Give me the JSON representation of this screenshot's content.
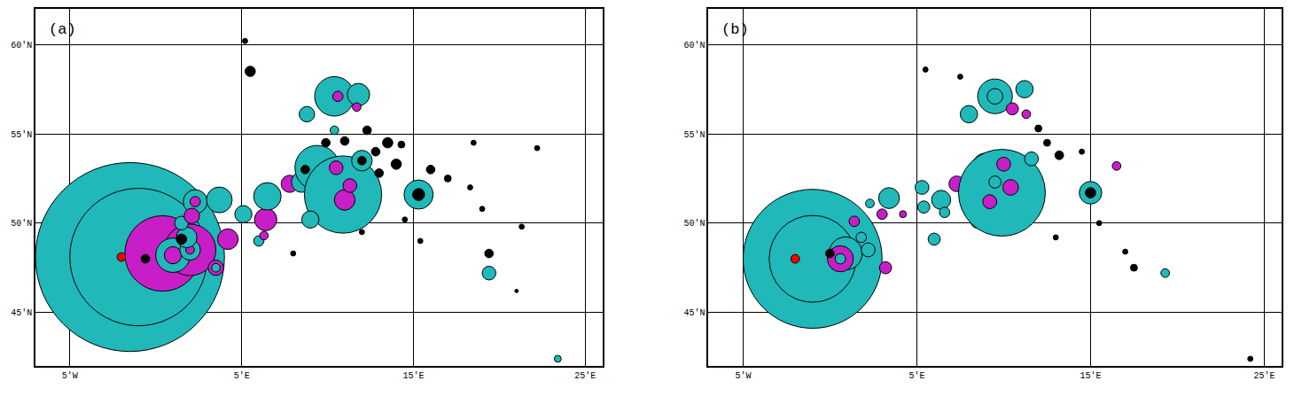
{
  "chart_data": [
    {
      "type": "scatter",
      "title": "(a)",
      "grid": true,
      "marker": "circle",
      "xlim": [
        -7,
        26
      ],
      "ylim": [
        42,
        62
      ],
      "xticks": [
        {
          "value": -5,
          "label": "5'W"
        },
        {
          "value": 5,
          "label": "5'E"
        },
        {
          "value": 15,
          "label": "15'E"
        },
        {
          "value": 25,
          "label": "25'E"
        }
      ],
      "yticks": [
        {
          "value": 45,
          "label": "45'N"
        },
        {
          "value": 50,
          "label": "50'N"
        },
        {
          "value": 55,
          "label": "55'N"
        },
        {
          "value": 60,
          "label": "60'N"
        }
      ],
      "series": [
        {
          "x": [
            -1.5,
            -1.0,
            0.4,
            2.0,
            1.0,
            1.0,
            2.0,
            2.0,
            1.8,
            1.5,
            -0.6,
            3.5,
            3.5,
            4.2,
            1.5,
            2.3,
            2.3,
            3.7,
            2.1,
            5.1,
            6.4,
            6.5,
            7.8,
            8.5,
            9.4,
            10.9,
            9.0,
            11.0,
            11.3,
            10.5,
            12.0,
            12.0,
            15.3,
            15.3,
            10.4,
            10.6,
            11.8,
            8.8,
            11.7,
            10.4,
            6.0,
            6.3,
            19.4,
            23.4,
            5.5,
            5.2,
            12.3,
            13.5,
            14.3,
            12.8,
            14.0,
            16.0,
            18.5,
            22.2,
            17.0,
            18.3,
            19.0,
            19.4,
            21.3,
            21.0,
            15.4,
            12.0,
            14.5,
            8.0,
            8.7,
            9.9,
            11.0,
            13.0,
            -2.0
          ],
          "y": [
            48.1,
            48.1,
            48.3,
            48.5,
            48.2,
            48.2,
            48.5,
            48.5,
            49.2,
            49.1,
            48.0,
            47.5,
            47.5,
            49.1,
            50.0,
            51.2,
            51.2,
            51.3,
            50.4,
            50.5,
            50.2,
            51.5,
            52.2,
            52.3,
            53.1,
            51.6,
            50.2,
            51.3,
            52.1,
            53.1,
            53.5,
            53.5,
            51.6,
            51.6,
            57.1,
            57.1,
            57.2,
            56.1,
            56.5,
            55.2,
            49.0,
            49.3,
            47.2,
            42.4,
            58.5,
            60.2,
            55.2,
            54.5,
            54.4,
            54.0,
            53.3,
            53.0,
            54.5,
            54.2,
            52.5,
            52.0,
            50.8,
            48.3,
            49.8,
            46.2,
            49.0,
            49.5,
            50.2,
            48.3,
            53.0,
            54.5,
            54.6,
            52.8,
            48.1
          ],
          "size": [
            11,
            8,
            4.4,
            3.0,
            2.0,
            1.0,
            1.2,
            0.5,
            1.2,
            0.6,
            0.5,
            0.9,
            0.5,
            1.2,
            0.8,
            1.4,
            0.6,
            1.5,
            0.9,
            1.0,
            1.3,
            1.6,
            1.0,
            1.2,
            2.6,
            4.5,
            1.0,
            1.2,
            0.8,
            0.8,
            1.2,
            0.5,
            1.7,
            0.7,
            2.3,
            0.6,
            1.3,
            0.9,
            0.5,
            0.5,
            0.6,
            0.5,
            0.8,
            0.4,
            0.6,
            0.3,
            0.5,
            0.6,
            0.4,
            0.5,
            0.6,
            0.5,
            0.3,
            0.3,
            0.4,
            0.3,
            0.3,
            0.5,
            0.3,
            0.2,
            0.3,
            0.3,
            0.3,
            0.3,
            0.5,
            0.5,
            0.5,
            0.5,
            0.5
          ],
          "colors": [
            "#20b8b8",
            "#20b8b8",
            "#c81ec8",
            "#c81ec8",
            "#20b8b8",
            "#c81ec8",
            "#20b8b8",
            "#c81ec8",
            "#20b8b8",
            "#000000",
            "#000000",
            "#c81ec8",
            "#20b8b8",
            "#c81ec8",
            "#20b8b8",
            "#20b8b8",
            "#c81ec8",
            "#20b8b8",
            "#c81ec8",
            "#20b8b8",
            "#c81ec8",
            "#20b8b8",
            "#c81ec8",
            "#20b8b8",
            "#20b8b8",
            "#20b8b8",
            "#20b8b8",
            "#c81ec8",
            "#c81ec8",
            "#c81ec8",
            "#20b8b8",
            "#000000",
            "#20b8b8",
            "#000000",
            "#20b8b8",
            "#c81ec8",
            "#20b8b8",
            "#20b8b8",
            "#c81ec8",
            "#20b8b8",
            "#20b8b8",
            "#c81ec8",
            "#20b8b8",
            "#20b8b8",
            "#000000",
            "#000000",
            "#000000",
            "#000000",
            "#000000",
            "#000000",
            "#000000",
            "#000000",
            "#000000",
            "#000000",
            "#000000",
            "#000000",
            "#000000",
            "#000000",
            "#000000",
            "#000000",
            "#000000",
            "#000000",
            "#000000",
            "#000000",
            "#000000",
            "#000000",
            "#000000",
            "#000000",
            "#ff0000"
          ]
        }
      ]
    },
    {
      "type": "scatter",
      "title": "(b)",
      "grid": true,
      "marker": "circle",
      "xlim": [
        -7,
        26
      ],
      "ylim": [
        42,
        62
      ],
      "xticks": [
        {
          "value": -5,
          "label": "5'W"
        },
        {
          "value": 5,
          "label": "5'E"
        },
        {
          "value": 15,
          "label": "15'E"
        },
        {
          "value": 25,
          "label": "25'E"
        }
      ],
      "yticks": [
        {
          "value": 45,
          "label": "45'N"
        },
        {
          "value": 50,
          "label": "50'N"
        },
        {
          "value": 55,
          "label": "55'N"
        },
        {
          "value": 60,
          "label": "60'N"
        }
      ],
      "series": [
        {
          "x": [
            -1.0,
            -1.0,
            0.9,
            0.6,
            0.6,
            3.2,
            2.2,
            1.8,
            1.4,
            2.3,
            3.4,
            3.0,
            4.2,
            5.3,
            5.4,
            6.4,
            6.6,
            7.3,
            6.0,
            7.9,
            8.5,
            9.0,
            9.9,
            10.0,
            10.4,
            9.2,
            9.5,
            11.6,
            15.0,
            15.0,
            9.5,
            9.5,
            11.2,
            8.0,
            10.5,
            11.3,
            16.5,
            5.5,
            7.5,
            12.0,
            12.5,
            13.2,
            14.5,
            17.0,
            17.5,
            19.3,
            24.2,
            13.0,
            15.5,
            0.0,
            -2.0
          ],
          "y": [
            48.0,
            48.0,
            48.3,
            48.0,
            48.0,
            47.5,
            48.5,
            49.2,
            50.1,
            51.1,
            51.4,
            50.5,
            50.5,
            52.0,
            50.9,
            51.3,
            50.6,
            52.2,
            49.1,
            51.8,
            50.1,
            53.1,
            51.7,
            53.3,
            52.0,
            51.2,
            52.3,
            53.6,
            51.7,
            51.7,
            57.1,
            57.1,
            57.5,
            56.1,
            56.4,
            56.1,
            53.2,
            58.6,
            58.2,
            55.3,
            54.5,
            53.8,
            54.0,
            48.4,
            47.5,
            47.2,
            42.4,
            49.2,
            50.0,
            48.3,
            48.0
          ],
          "size": [
            8,
            5,
            1.9,
            1.5,
            0.6,
            0.7,
            0.8,
            0.6,
            0.6,
            0.5,
            1.2,
            0.6,
            0.4,
            0.8,
            0.7,
            1.1,
            0.6,
            0.9,
            0.7,
            0.9,
            0.8,
            1.7,
            5.0,
            0.8,
            0.9,
            0.8,
            0.7,
            0.8,
            1.3,
            0.6,
            2.0,
            0.9,
            1.0,
            1.0,
            0.7,
            0.5,
            0.5,
            0.3,
            0.3,
            0.4,
            0.4,
            0.5,
            0.3,
            0.3,
            0.4,
            0.5,
            0.3,
            0.3,
            0.3,
            0.5,
            0.5
          ],
          "colors": [
            "#20b8b8",
            "#20b8b8",
            "#20b8b8",
            "#c81ec8",
            "#20b8b8",
            "#c81ec8",
            "#20b8b8",
            "#20b8b8",
            "#c81ec8",
            "#20b8b8",
            "#20b8b8",
            "#c81ec8",
            "#c81ec8",
            "#20b8b8",
            "#20b8b8",
            "#20b8b8",
            "#20b8b8",
            "#c81ec8",
            "#20b8b8",
            "#20b8b8",
            "#20b8b8",
            "#20b8b8",
            "#20b8b8",
            "#c81ec8",
            "#c81ec8",
            "#c81ec8",
            "#20b8b8",
            "#20b8b8",
            "#20b8b8",
            "#000000",
            "#20b8b8",
            "#20b8b8",
            "#20b8b8",
            "#20b8b8",
            "#c81ec8",
            "#c81ec8",
            "#c81ec8",
            "#000000",
            "#000000",
            "#000000",
            "#000000",
            "#000000",
            "#000000",
            "#000000",
            "#000000",
            "#20b8b8",
            "#000000",
            "#000000",
            "#000000",
            "#000000",
            "#ff0000"
          ]
        }
      ]
    }
  ]
}
